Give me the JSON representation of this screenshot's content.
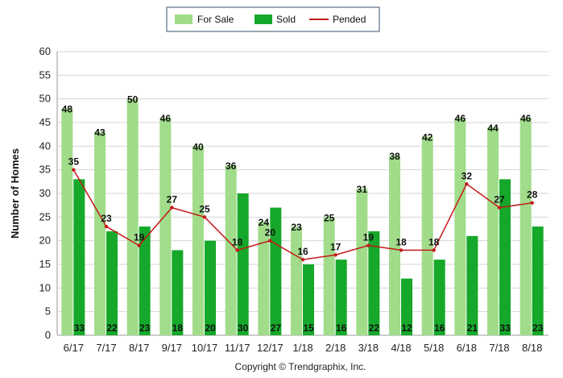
{
  "chart_data": {
    "type": "bar",
    "categories": [
      "6/17",
      "7/17",
      "8/17",
      "9/17",
      "10/17",
      "11/17",
      "12/17",
      "1/18",
      "2/18",
      "3/18",
      "4/18",
      "5/18",
      "6/18",
      "7/18",
      "8/18"
    ],
    "series": [
      {
        "name": "For Sale",
        "kind": "bar",
        "color": "#a0dc8a",
        "values": [
          48,
          43,
          50,
          46,
          40,
          36,
          24,
          23,
          25,
          31,
          38,
          42,
          46,
          44,
          46
        ]
      },
      {
        "name": "Sold",
        "kind": "bar",
        "color": "#16a82a",
        "values": [
          33,
          22,
          23,
          18,
          20,
          30,
          27,
          15,
          16,
          22,
          12,
          16,
          21,
          33,
          23
        ]
      },
      {
        "name": "Pended",
        "kind": "line",
        "color": "#c41a1a",
        "values": [
          35,
          23,
          19,
          27,
          25,
          18,
          20,
          16,
          17,
          19,
          18,
          18,
          32,
          27,
          28
        ]
      }
    ],
    "ylabel": "Number of Homes",
    "ylim": [
      0,
      60
    ],
    "yticks": [
      "0",
      "5",
      "10",
      "15",
      "20",
      "25",
      "30",
      "35",
      "40",
      "45",
      "50",
      "55",
      "60"
    ],
    "grid": true,
    "legend_position": "top-center",
    "copyright": "Copyright © Trendgraphix, Inc."
  }
}
